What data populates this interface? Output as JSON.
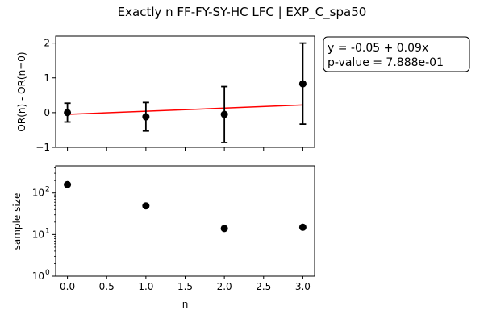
{
  "figure": {
    "title": "Exactly n FF-FY-SY-HC LFC | EXP_C_spa50"
  },
  "annotation": {
    "lines": [
      "y = -0.05 + 0.09x",
      "p-value = 7.888e-01"
    ]
  },
  "chart_data": [
    {
      "type": "scatter",
      "xlabel": "",
      "ylabel": "OR(n) - OR(n=0)",
      "xlim": [
        -0.15,
        3.15
      ],
      "ylim": [
        -1.0,
        2.2
      ],
      "yticks": [
        -1,
        0,
        1,
        2
      ],
      "ytick_labels": [
        "−1",
        "0",
        "1",
        "2"
      ],
      "xticks": [
        0.0,
        0.5,
        1.0,
        1.5,
        2.0,
        2.5,
        3.0
      ],
      "x": [
        0,
        1,
        2,
        3
      ],
      "y": [
        0.0,
        -0.12,
        -0.05,
        0.83
      ],
      "err_low": [
        -0.27,
        -0.53,
        -0.86,
        -0.33
      ],
      "err_high": [
        0.27,
        0.29,
        0.75,
        2.0
      ],
      "fit": {
        "intercept": -0.05,
        "slope": 0.09,
        "color": "#ff0000"
      },
      "marker_color": "#000000",
      "grid": false
    },
    {
      "type": "scatter",
      "xlabel": "n",
      "ylabel": "sample size",
      "yscale": "log",
      "xlim": [
        -0.15,
        3.15
      ],
      "ylim": [
        1,
        450
      ],
      "yticks": [
        1,
        10,
        100
      ],
      "ytick_labels": [
        "10",
        "10",
        "10"
      ],
      "ytick_exponents": [
        "0",
        "1",
        "2"
      ],
      "xticks": [
        0.0,
        0.5,
        1.0,
        1.5,
        2.0,
        2.5,
        3.0
      ],
      "xtick_labels": [
        "0.0",
        "0.5",
        "1.0",
        "1.5",
        "2.0",
        "2.5",
        "3.0"
      ],
      "x": [
        0,
        1,
        2,
        3
      ],
      "y": [
        160,
        49,
        14,
        15
      ],
      "marker_color": "#000000",
      "grid": false
    }
  ]
}
